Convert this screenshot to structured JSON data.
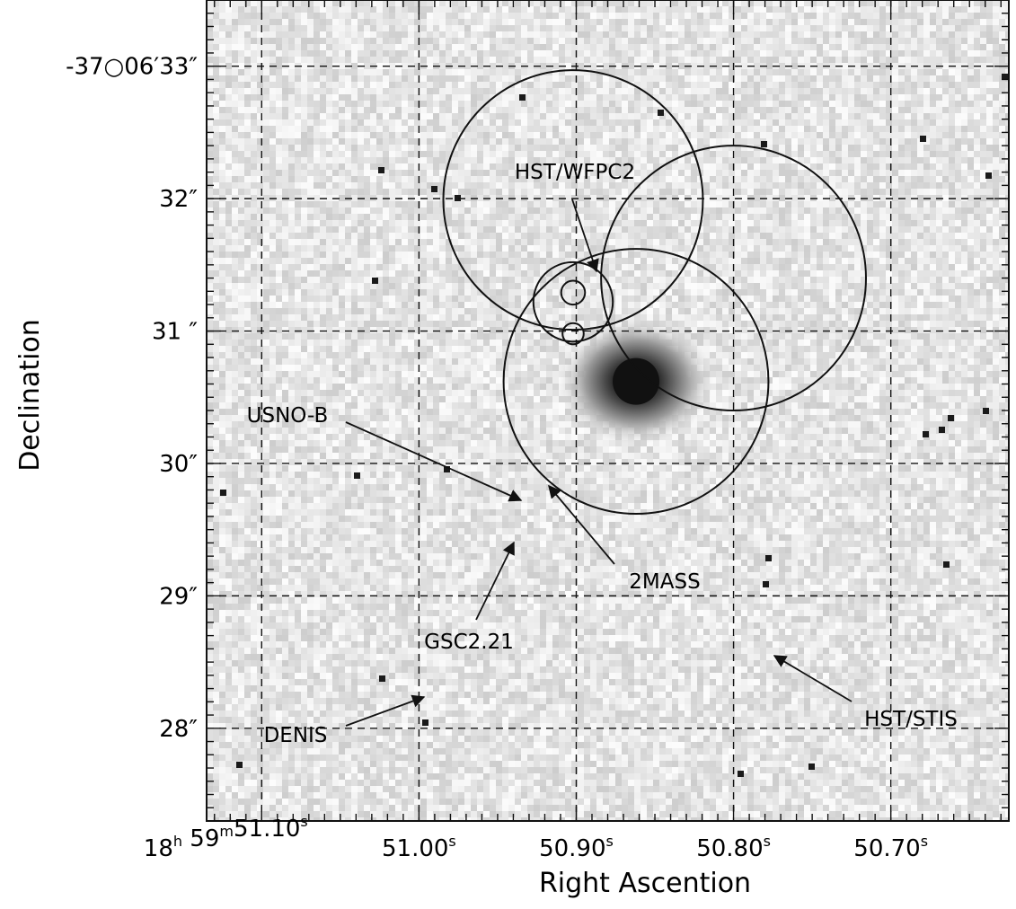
{
  "chart_data": {
    "type": "scatter",
    "title": "",
    "xlabel": "Right Ascention",
    "ylabel": "Declination",
    "x_unit": "seconds of right ascension (18h59m)",
    "y_unit": "arcsec (Dec -37°06′)",
    "xlim": [
      51.135,
      50.625
    ],
    "ylim": [
      33.5,
      27.3
    ],
    "grid": true,
    "grid_style": "dashed",
    "x_ticks": [
      {
        "value": 51.1,
        "label_main": "18",
        "sup1": "h",
        "mid": " 59",
        "sup2": "m",
        "tail": "51.10",
        "sup3": "s"
      },
      {
        "value": 51.0,
        "label_main": "51.00",
        "sup1": "s"
      },
      {
        "value": 50.9,
        "label_main": "50.90",
        "sup1": "s"
      },
      {
        "value": 50.8,
        "label_main": "50.80",
        "sup1": "s"
      },
      {
        "value": 50.7,
        "label_main": "50.70",
        "sup1": "s"
      }
    ],
    "y_ticks": [
      {
        "value": 28,
        "label": "28″"
      },
      {
        "value": 29,
        "label": "29″"
      },
      {
        "value": 30,
        "label": "30″"
      },
      {
        "value": 31,
        "label": "31 ″"
      },
      {
        "value": 32,
        "label": "32″"
      },
      {
        "value": 33,
        "label": "-37○06′33″"
      }
    ],
    "background": "greyscale sky image, bright source near RA 50.86s, Dec 30.6″",
    "source": {
      "x": 50.862,
      "y": 30.62,
      "color": "#111111"
    },
    "error_circles": [
      {
        "name": "HST/WFPC2",
        "x": 50.862,
        "y": 30.62,
        "r_arcsec": 1.0
      },
      {
        "name": "HST/STIS",
        "x": 50.8,
        "y": 31.4,
        "r_arcsec": 1.0
      },
      {
        "name": "DENIS",
        "x": 50.902,
        "y": 31.99,
        "r_arcsec": 0.98
      },
      {
        "name": "GSC2.21",
        "x": 50.902,
        "y": 31.22,
        "r_arcsec": 0.3
      },
      {
        "name": "USNO-B",
        "x": 50.902,
        "y": 31.29,
        "r_arcsec": 0.09
      },
      {
        "name": "2MASS",
        "x": 50.902,
        "y": 30.98,
        "r_arcsec": 0.08
      }
    ],
    "annotations": [
      {
        "text": "HST/WFPC2",
        "target": "HST/WFPC2"
      },
      {
        "text": "USNO-B",
        "target": "USNO-B"
      },
      {
        "text": "2MASS",
        "target": "2MASS"
      },
      {
        "text": "GSC2.21",
        "target": "GSC2.21"
      },
      {
        "text": "DENIS",
        "target": "DENIS"
      },
      {
        "text": "HST/STIS",
        "target": "HST/STIS"
      }
    ],
    "colors": {
      "circle": "#111111",
      "grid": "#111111",
      "sky": "#e3e3e3"
    }
  }
}
